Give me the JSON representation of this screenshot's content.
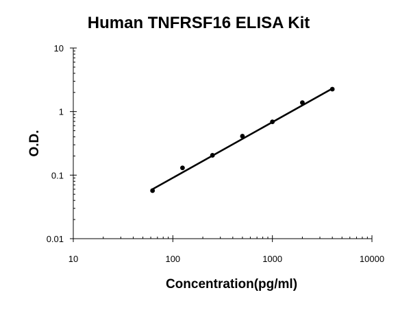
{
  "chart_data": {
    "type": "scatter",
    "title": "Human TNFRSF16 ELISA Kit",
    "xlabel": "Concentration(pg/ml)",
    "ylabel": "O.D.",
    "x_scale": "log",
    "y_scale": "log",
    "xlim": [
      10,
      10000
    ],
    "ylim": [
      0.01,
      10
    ],
    "x_ticks": [
      "10",
      "100",
      "1000",
      "10000"
    ],
    "y_ticks": [
      "10",
      "1",
      "0.1",
      "0.01"
    ],
    "grid": false,
    "legend": "none",
    "marker_color": "#000000",
    "line_color": "#000000",
    "series": [
      {
        "x": [
          62.5,
          125,
          250,
          500,
          1000,
          2000,
          4000
        ],
        "y": [
          0.057,
          0.13,
          0.205,
          0.41,
          0.69,
          1.38,
          2.25
        ]
      }
    ],
    "fit_line": {
      "x": [
        62.5,
        4000
      ],
      "y": [
        0.06,
        2.3
      ]
    }
  }
}
